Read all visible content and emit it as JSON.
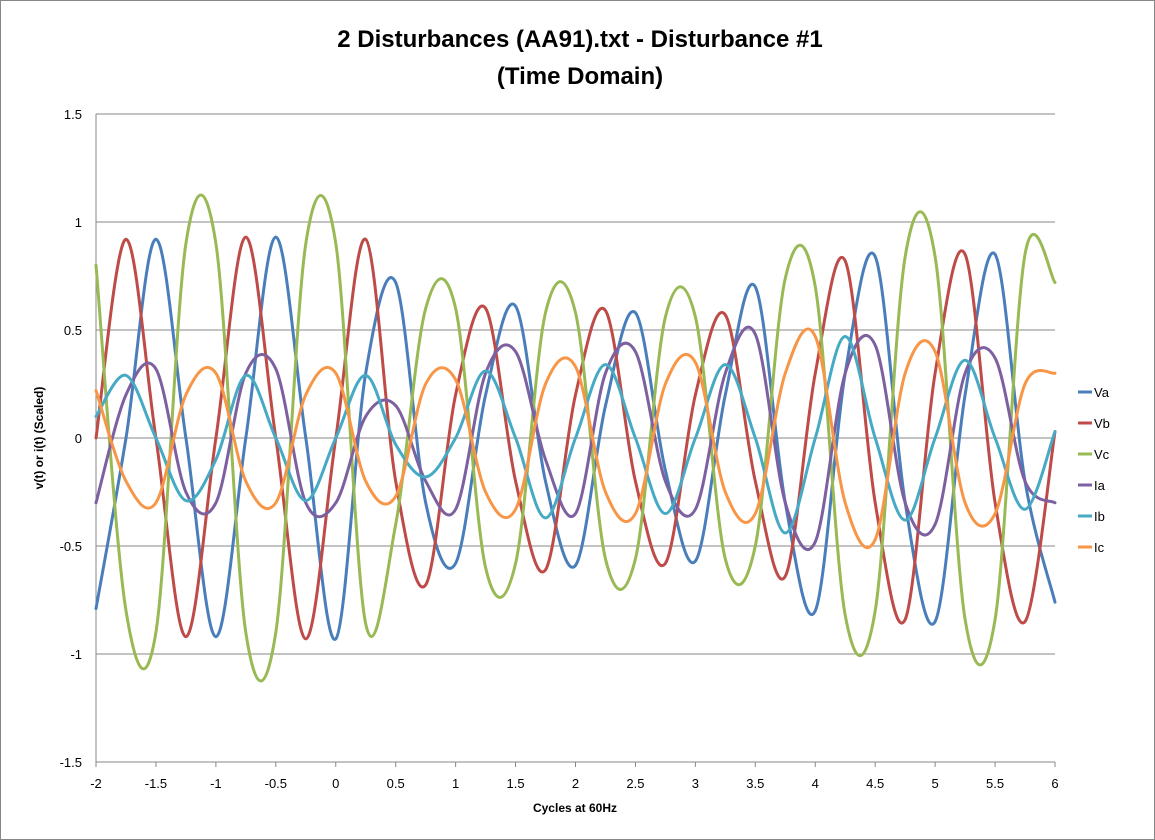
{
  "chart_data": {
    "type": "line",
    "title": "2 Disturbances (AA91).txt - Disturbance #1",
    "subtitle": "(Time Domain)",
    "xlabel": "Cycles at 60Hz",
    "ylabel": "v(t) or i(t) (Scaled)",
    "xlim": [
      -2,
      6
    ],
    "ylim": [
      -1.5,
      1.5
    ],
    "x_ticks": [
      "-2",
      "-1.5",
      "-1",
      "-0.5",
      "0",
      "0.5",
      "1",
      "1.5",
      "2",
      "2.5",
      "3",
      "3.5",
      "4",
      "4.5",
      "5",
      "5.5",
      "6"
    ],
    "y_ticks": [
      "1.5",
      "1",
      "0.5",
      "0",
      "-0.5",
      "-1",
      "-1.5"
    ],
    "grid": "horizontal",
    "legend_position": "right",
    "x": [
      -2,
      -1.75,
      -1.5,
      -1.25,
      -1,
      -0.75,
      -0.5,
      -0.25,
      0,
      0.25,
      0.5,
      0.75,
      1,
      1.25,
      1.5,
      1.75,
      2,
      2.25,
      2.5,
      2.75,
      3,
      3.25,
      3.5,
      3.75,
      4,
      4.25,
      4.5,
      4.75,
      5,
      5.25,
      5.5,
      5.75,
      6
    ],
    "series": [
      {
        "name": "Va",
        "color": "#4a7ebb",
        "values": [
          -0.79,
          0.0,
          0.92,
          0.0,
          -0.92,
          0.0,
          0.93,
          0.0,
          -0.93,
          0.3,
          0.72,
          -0.3,
          -0.58,
          0.2,
          0.61,
          -0.2,
          -0.59,
          0.15,
          0.58,
          -0.15,
          -0.57,
          0.2,
          0.7,
          -0.3,
          -0.8,
          0.3,
          0.84,
          -0.3,
          -0.85,
          0.2,
          0.85,
          -0.2,
          -0.76
        ]
      },
      {
        "name": "Vb",
        "color": "#be4b48",
        "values": [
          0.0,
          0.92,
          0.0,
          -0.92,
          0.0,
          0.93,
          0.0,
          -0.93,
          0.0,
          0.92,
          -0.2,
          -0.68,
          0.2,
          0.6,
          -0.2,
          -0.61,
          0.2,
          0.59,
          -0.2,
          -0.58,
          0.2,
          0.57,
          -0.2,
          -0.64,
          0.3,
          0.82,
          -0.3,
          -0.84,
          0.3,
          0.85,
          -0.3,
          -0.85,
          0.03
        ]
      },
      {
        "name": "Vc",
        "color": "#98b954",
        "values": [
          0.8,
          -0.8,
          -0.9,
          0.9,
          0.9,
          -0.9,
          -0.9,
          0.9,
          0.9,
          -0.86,
          -0.4,
          0.6,
          0.6,
          -0.6,
          -0.58,
          0.58,
          0.58,
          -0.56,
          -0.56,
          0.56,
          0.56,
          -0.56,
          -0.5,
          0.74,
          0.7,
          -0.82,
          -0.8,
          0.84,
          0.84,
          -0.84,
          -0.84,
          0.85,
          0.72
        ]
      },
      {
        "name": "Ia",
        "color": "#7d60a0",
        "values": [
          -0.3,
          0.2,
          0.32,
          -0.25,
          -0.3,
          0.3,
          0.32,
          -0.3,
          -0.3,
          0.1,
          0.15,
          -0.2,
          -0.33,
          0.3,
          0.4,
          -0.1,
          -0.35,
          0.3,
          0.4,
          -0.2,
          -0.33,
          0.3,
          0.48,
          -0.3,
          -0.48,
          0.3,
          0.43,
          -0.3,
          -0.4,
          0.3,
          0.37,
          -0.2,
          -0.3
        ]
      },
      {
        "name": "Ib",
        "color": "#46aac5",
        "values": [
          0.1,
          0.29,
          0.0,
          -0.29,
          -0.1,
          0.29,
          0.0,
          -0.29,
          0.0,
          0.29,
          -0.03,
          -0.18,
          0.0,
          0.31,
          0.0,
          -0.37,
          0.0,
          0.34,
          0.0,
          -0.35,
          0.0,
          0.34,
          0.0,
          -0.44,
          0.0,
          0.47,
          0.0,
          -0.38,
          0.0,
          0.36,
          0.0,
          -0.33,
          0.03
        ]
      },
      {
        "name": "Ic",
        "color": "#f79646",
        "values": [
          0.22,
          -0.2,
          -0.3,
          0.2,
          0.3,
          -0.2,
          -0.3,
          0.2,
          0.3,
          -0.2,
          -0.27,
          0.25,
          0.27,
          -0.25,
          -0.33,
          0.25,
          0.33,
          -0.25,
          -0.35,
          0.25,
          0.35,
          -0.25,
          -0.35,
          0.3,
          0.47,
          -0.3,
          -0.47,
          0.3,
          0.4,
          -0.3,
          -0.35,
          0.25,
          0.3
        ]
      }
    ]
  }
}
